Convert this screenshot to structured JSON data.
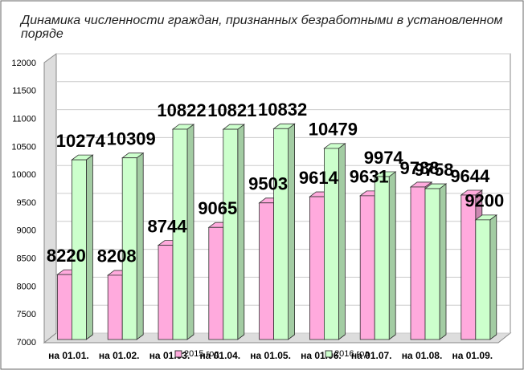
{
  "chart_data": {
    "type": "bar3d",
    "title": "Динамика численности граждан, признанных безработными в установленном поряде",
    "categories": [
      "на 01.01.",
      "на 01.02.",
      "на 01.03.",
      "на 01.04.",
      "на 01.05.",
      "на 01.06.",
      "на 01.07.",
      "на 01.08.",
      "на 01.09."
    ],
    "series": [
      {
        "name": "2015 год",
        "color": "#ffaadd",
        "values": [
          8220,
          8208,
          8744,
          9065,
          9503,
          9614,
          9631,
          9788,
          9644
        ]
      },
      {
        "name": "2016 год",
        "color": "#ccffcc",
        "values": [
          10274,
          10309,
          10822,
          10821,
          10832,
          10479,
          9974,
          9758,
          9200
        ]
      }
    ],
    "ylim": [
      7000,
      12000
    ],
    "yticks": [
      7000,
      7500,
      8000,
      8500,
      9000,
      9500,
      10000,
      10500,
      11000,
      11500,
      12000
    ],
    "grid": true
  }
}
